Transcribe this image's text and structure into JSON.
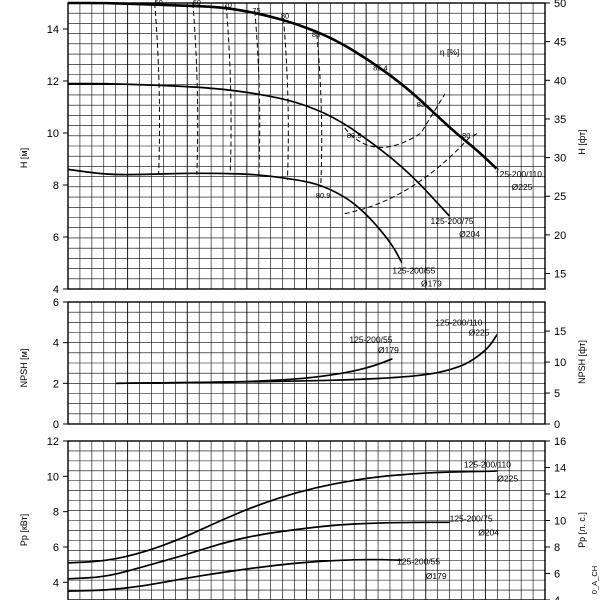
{
  "chart_data": [
    {
      "type": "line",
      "panel": "head",
      "ylabel_left": "H [м]",
      "ylabel_right": "H [фт]",
      "eff_label": "η [%]",
      "ylim_left": [
        4,
        15
      ],
      "ylim_right": [
        13,
        50
      ],
      "yticks_left": [
        4,
        6,
        8,
        10,
        12,
        14
      ],
      "yticks_right": [
        15,
        20,
        25,
        30,
        35,
        40,
        45,
        50
      ],
      "xlim": [
        0,
        1
      ],
      "series": [
        {
          "name": "125-200/110",
          "diameter": "Ø225",
          "weight": "bold",
          "x": [
            0.0,
            0.08,
            0.16,
            0.24,
            0.32,
            0.4,
            0.48,
            0.56,
            0.64,
            0.72,
            0.8,
            0.86,
            0.9
          ],
          "y": [
            15.0,
            15.0,
            14.95,
            14.9,
            14.85,
            14.6,
            14.2,
            13.6,
            12.7,
            11.6,
            10.2,
            9.3,
            8.6
          ]
        },
        {
          "name": "125-200/75",
          "diameter": "Ø204",
          "weight": "normal",
          "x": [
            0.0,
            0.08,
            0.16,
            0.24,
            0.32,
            0.4,
            0.48,
            0.56,
            0.64,
            0.72,
            0.8
          ],
          "y": [
            11.9,
            11.9,
            11.85,
            11.8,
            11.7,
            11.5,
            11.2,
            10.6,
            9.6,
            8.4,
            6.8
          ]
        },
        {
          "name": "125-200/55",
          "diameter": "Ø179",
          "weight": "normal",
          "x": [
            0.0,
            0.08,
            0.16,
            0.24,
            0.32,
            0.4,
            0.48,
            0.52,
            0.56,
            0.6,
            0.64,
            0.68,
            0.7
          ],
          "y": [
            8.6,
            8.4,
            8.4,
            8.45,
            8.45,
            8.4,
            8.2,
            8.05,
            7.75,
            7.3,
            6.6,
            5.7,
            5.0
          ]
        }
      ],
      "efficiency_labels": [
        "50",
        "60",
        "70",
        "75",
        "80",
        "83",
        "85.4",
        "83",
        "80",
        "83.5",
        "80.9"
      ]
    },
    {
      "type": "line",
      "panel": "npsh",
      "ylabel_left": "NPSH [м]",
      "ylabel_right": "NPSH [фт]",
      "ylim_left": [
        0,
        6
      ],
      "ylim_right": [
        0,
        19.7
      ],
      "yticks_left": [
        0,
        2,
        4,
        6
      ],
      "yticks_right": [
        0,
        5,
        10,
        15
      ],
      "xlim": [
        0,
        1
      ],
      "series": [
        {
          "name": "125-200/110",
          "diameter": "Ø225",
          "x": [
            0.1,
            0.2,
            0.3,
            0.4,
            0.5,
            0.6,
            0.7,
            0.76,
            0.8,
            0.84,
            0.88,
            0.9
          ],
          "y": [
            2.0,
            2.02,
            2.05,
            2.08,
            2.12,
            2.18,
            2.3,
            2.45,
            2.65,
            3.0,
            3.7,
            4.4
          ]
        },
        {
          "name": "125-200/55",
          "diameter": "Ø179",
          "x": [
            0.1,
            0.2,
            0.3,
            0.4,
            0.5,
            0.55,
            0.6,
            0.64,
            0.68
          ],
          "y": [
            2.0,
            2.02,
            2.05,
            2.1,
            2.25,
            2.4,
            2.6,
            2.85,
            3.2
          ]
        }
      ]
    },
    {
      "type": "line",
      "panel": "power",
      "ylabel_left": "Pp [кВт]",
      "ylabel_right": "Pp [л. с.]",
      "ylim_left": [
        3,
        12
      ],
      "ylim_right": [
        4,
        16
      ],
      "yticks_left": [
        4,
        6,
        8,
        10,
        12
      ],
      "yticks_right": [
        4,
        6,
        8,
        10,
        12,
        14,
        16
      ],
      "xlim": [
        0,
        1
      ],
      "series": [
        {
          "name": "125-200/110",
          "diameter": "Ø225",
          "x": [
            0.0,
            0.08,
            0.16,
            0.24,
            0.32,
            0.4,
            0.48,
            0.56,
            0.64,
            0.72,
            0.8,
            0.9
          ],
          "y": [
            5.1,
            5.2,
            5.7,
            6.5,
            7.5,
            8.4,
            9.1,
            9.6,
            9.95,
            10.15,
            10.25,
            10.3
          ]
        },
        {
          "name": "125-200/75",
          "diameter": "Ø204",
          "x": [
            0.0,
            0.08,
            0.16,
            0.24,
            0.32,
            0.4,
            0.48,
            0.56,
            0.64,
            0.72,
            0.8
          ],
          "y": [
            4.2,
            4.3,
            4.9,
            5.5,
            6.2,
            6.7,
            7.0,
            7.25,
            7.35,
            7.4,
            7.4
          ]
        },
        {
          "name": "125-200/55",
          "diameter": "Ø179",
          "x": [
            0.0,
            0.08,
            0.16,
            0.24,
            0.32,
            0.4,
            0.48,
            0.56,
            0.64,
            0.7
          ],
          "y": [
            3.5,
            3.55,
            3.8,
            4.2,
            4.55,
            4.85,
            5.1,
            5.25,
            5.3,
            5.25
          ]
        }
      ]
    }
  ],
  "corner_label": "0_A_CH"
}
